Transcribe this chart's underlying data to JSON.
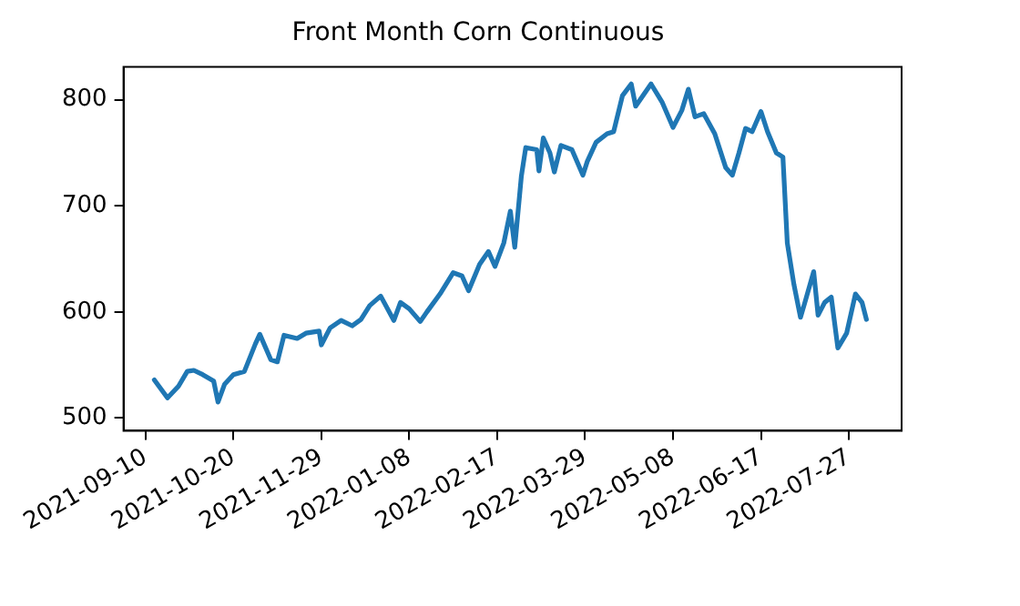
{
  "chart_data": {
    "type": "line",
    "title": "Front Month Corn Continuous",
    "x": [
      "2021-09-14",
      "2021-09-20",
      "2021-09-25",
      "2021-09-29",
      "2021-10-02",
      "2021-10-06",
      "2021-10-11",
      "2021-10-13",
      "2021-10-16",
      "2021-10-20",
      "2021-10-25",
      "2021-10-30",
      "2021-11-01",
      "2021-11-06",
      "2021-11-09",
      "2021-11-12",
      "2021-11-18",
      "2021-11-22",
      "2021-11-28",
      "2021-11-29",
      "2021-12-03",
      "2021-12-08",
      "2021-12-13",
      "2021-12-17",
      "2021-12-21",
      "2021-12-26",
      "2022-01-01",
      "2022-01-04",
      "2022-01-08",
      "2022-01-13",
      "2022-01-16",
      "2022-01-22",
      "2022-01-28",
      "2022-02-01",
      "2022-02-04",
      "2022-02-09",
      "2022-02-13",
      "2022-02-16",
      "2022-02-20",
      "2022-02-23",
      "2022-02-25",
      "2022-02-28",
      "2022-03-02",
      "2022-03-07",
      "2022-03-08",
      "2022-03-10",
      "2022-03-13",
      "2022-03-15",
      "2022-03-18",
      "2022-03-23",
      "2022-03-28",
      "2022-03-30",
      "2022-04-03",
      "2022-04-08",
      "2022-04-11",
      "2022-04-15",
      "2022-04-19",
      "2022-04-21",
      "2022-04-28",
      "2022-05-03",
      "2022-05-08",
      "2022-05-12",
      "2022-05-15",
      "2022-05-18",
      "2022-05-22",
      "2022-05-27",
      "2022-06-01",
      "2022-06-04",
      "2022-06-07",
      "2022-06-10",
      "2022-06-13",
      "2022-06-17",
      "2022-06-20",
      "2022-06-24",
      "2022-06-27",
      "2022-06-29",
      "2022-07-02",
      "2022-07-05",
      "2022-07-07",
      "2022-07-11",
      "2022-07-13",
      "2022-07-16",
      "2022-07-19",
      "2022-07-22",
      "2022-07-26",
      "2022-07-30",
      "2022-08-02",
      "2022-08-04"
    ],
    "series": [
      {
        "color": "#1f77b4",
        "values": [
          536,
          519,
          530,
          544,
          545,
          541,
          535,
          515,
          532,
          541,
          544,
          570,
          579,
          555,
          553,
          578,
          575,
          580,
          582,
          569,
          585,
          592,
          587,
          593,
          606,
          615,
          592,
          609,
          603,
          591,
          600,
          617,
          637,
          634,
          620,
          645,
          657,
          643,
          665,
          695,
          661,
          728,
          755,
          753,
          733,
          764,
          750,
          732,
          757,
          753,
          729,
          742,
          760,
          768,
          770,
          804,
          815,
          794,
          815,
          798,
          774,
          790,
          810,
          784,
          787,
          768,
          736,
          729,
          750,
          773,
          770,
          789,
          770,
          750,
          746,
          665,
          626,
          595,
          609,
          638,
          597,
          609,
          614,
          566,
          580,
          617,
          609,
          593
        ]
      }
    ],
    "xlim": [
      "2021-08-31",
      "2022-08-20"
    ],
    "xticks": [
      "2021-09-10",
      "2021-10-20",
      "2021-11-29",
      "2022-01-08",
      "2022-02-17",
      "2022-03-29",
      "2022-05-08",
      "2022-06-17",
      "2022-07-27"
    ],
    "ylim": [
      488,
      831
    ],
    "yticks": [
      500,
      600,
      700,
      800
    ],
    "grid": false,
    "legend": false,
    "marker": "none",
    "line_style": "solid"
  }
}
